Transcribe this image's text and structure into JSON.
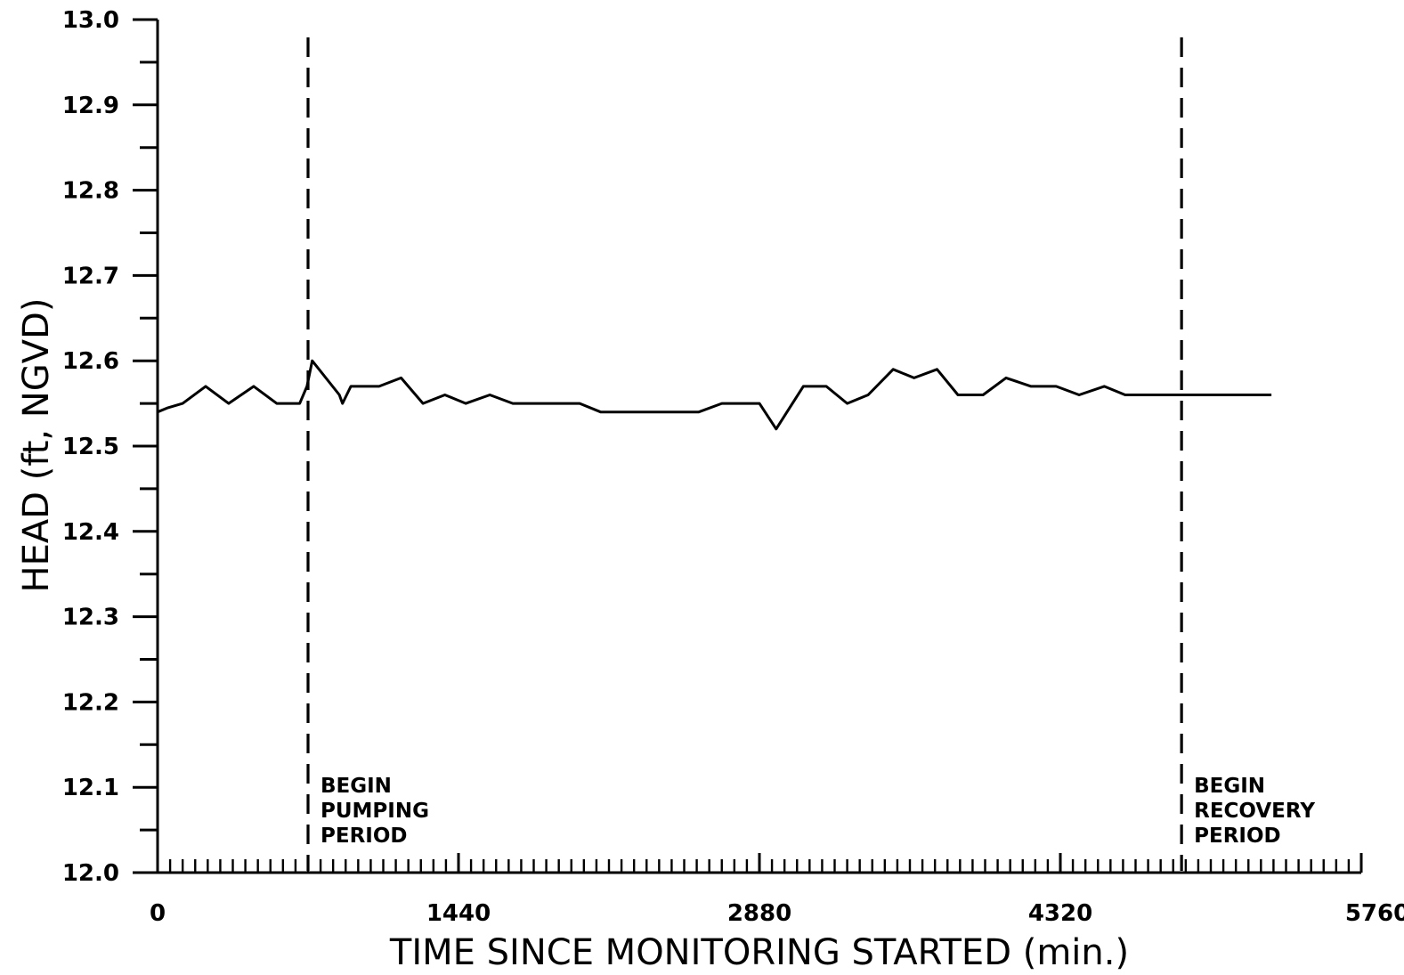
{
  "chart_data": {
    "type": "line",
    "title": "",
    "xlabel": "TIME SINCE MONITORING STARTED (min.)",
    "ylabel": "HEAD (ft, NGVD)",
    "xlim": [
      0,
      5760
    ],
    "ylim": [
      12.0,
      13.0
    ],
    "x_ticks": [
      0,
      1440,
      2880,
      4320,
      5760
    ],
    "x_tick_labels": [
      "0",
      "1440",
      "2880",
      "4320",
      "5760"
    ],
    "y_ticks": [
      12.0,
      12.1,
      12.2,
      12.3,
      12.4,
      12.5,
      12.6,
      12.7,
      12.8,
      12.9,
      13.0
    ],
    "y_tick_labels": [
      "12.0",
      "12.1",
      "12.2",
      "12.3",
      "12.4",
      "12.5",
      "12.6",
      "12.7",
      "12.8",
      "12.9",
      "13.0"
    ],
    "x_minor_step": 60,
    "y_minor_step": 0.05,
    "grid": false,
    "series": [
      {
        "x": [
          0,
          50,
          120,
          230,
          340,
          460,
          570,
          680,
          715,
          740,
          870,
          885,
          925,
          1060,
          1165,
          1270,
          1375,
          1475,
          1590,
          1700,
          1810,
          1900,
          2020,
          2120,
          2210,
          2350,
          2470,
          2590,
          2700,
          2800,
          2880,
          2960,
          3090,
          3200,
          3300,
          3400,
          3520,
          3620,
          3730,
          3830,
          3950,
          4060,
          4180,
          4300,
          4410,
          4530,
          4630,
          4750,
          4860,
          4980,
          5080,
          5290,
          5330
        ],
        "y": [
          12.54,
          12.545,
          12.55,
          12.57,
          12.55,
          12.57,
          12.55,
          12.55,
          12.57,
          12.6,
          12.56,
          12.55,
          12.57,
          12.57,
          12.58,
          12.55,
          12.56,
          12.55,
          12.56,
          12.55,
          12.55,
          12.55,
          12.55,
          12.54,
          12.54,
          12.54,
          12.54,
          12.54,
          12.55,
          12.55,
          12.55,
          12.52,
          12.57,
          12.57,
          12.55,
          12.56,
          12.59,
          12.58,
          12.59,
          12.56,
          12.56,
          12.58,
          12.57,
          12.57,
          12.56,
          12.57,
          12.56,
          12.56,
          12.56,
          12.56,
          12.56,
          12.56,
          12.56
        ]
      }
    ],
    "annotations": [
      {
        "x": 720,
        "lines": [
          "BEGIN",
          "PUMPING",
          "PERIOD"
        ]
      },
      {
        "x": 4900,
        "lines": [
          "BEGIN",
          "RECOVERY",
          "PERIOD"
        ]
      }
    ]
  }
}
